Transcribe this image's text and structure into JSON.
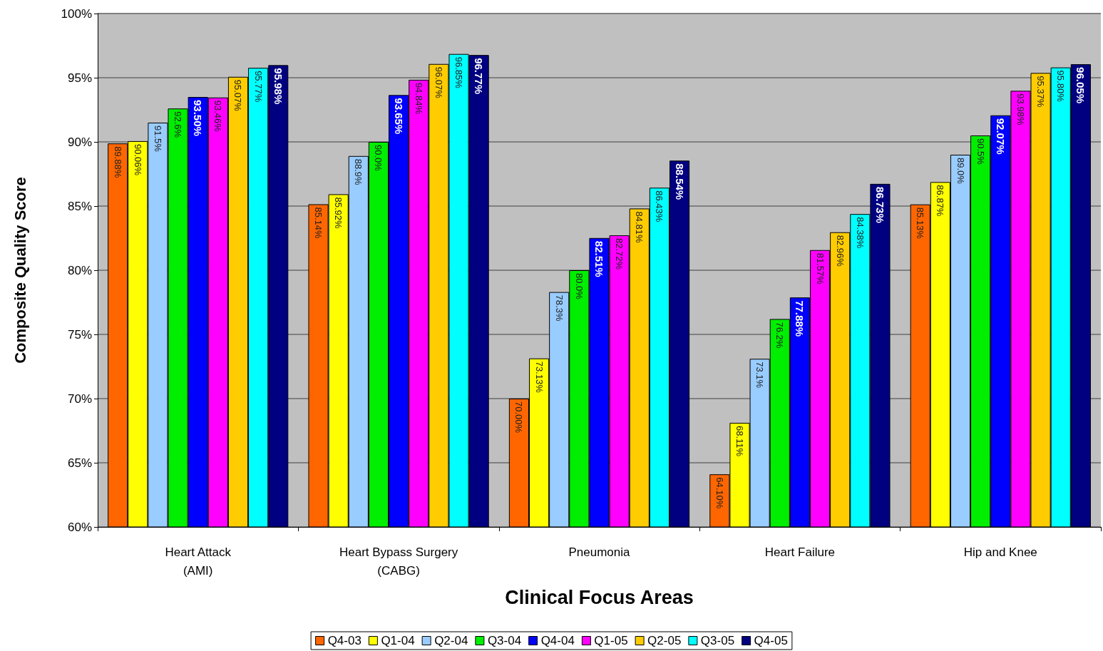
{
  "chart_data": {
    "type": "bar",
    "xlabel": "Clinical Focus Areas",
    "ylabel": "Composite Quality Score",
    "categories": [
      "Heart Attack\n(AMI)",
      "Heart Bypass Surgery\n(CABG)",
      "Pneumonia",
      "Heart Failure",
      "Hip and Knee"
    ],
    "ylim": [
      60,
      100
    ],
    "yticks": [
      {
        "value": 60,
        "label": "60%"
      },
      {
        "value": 65,
        "label": "65%"
      },
      {
        "value": 70,
        "label": "70%"
      },
      {
        "value": 75,
        "label": "75%"
      },
      {
        "value": 80,
        "label": "80%"
      },
      {
        "value": 85,
        "label": "85%"
      },
      {
        "value": 90,
        "label": "90%"
      },
      {
        "value": 95,
        "label": "95%"
      },
      {
        "value": 100,
        "label": "100%"
      }
    ],
    "grid": "y",
    "legend": "bottom",
    "series": [
      {
        "name": "Q4-03",
        "color": "#ff6600",
        "values": [
          89.88,
          85.14,
          70.0,
          64.1,
          85.13
        ],
        "value_labels": [
          "89.88%",
          "85.14%",
          "70.00%",
          "64.10%",
          "85.13%"
        ]
      },
      {
        "name": "Q1-04",
        "color": "#ffff00",
        "values": [
          90.06,
          85.92,
          73.13,
          68.11,
          86.87
        ],
        "value_labels": [
          "90.06%",
          "85.92%",
          "73.13%",
          "68.11%",
          "86.87%"
        ]
      },
      {
        "name": "Q2-04",
        "color": "#99ccff",
        "values": [
          91.5,
          88.9,
          78.3,
          73.1,
          89.0
        ],
        "value_labels": [
          "91.5%",
          "88.9%",
          "78.3%",
          "73.1%",
          "89.0%"
        ]
      },
      {
        "name": "Q3-04",
        "color": "#00ee00",
        "values": [
          92.6,
          90.0,
          80.0,
          76.2,
          90.5
        ],
        "value_labels": [
          "92.6%",
          "90.0%",
          "80.0%",
          "76.2%",
          "90.5%"
        ]
      },
      {
        "name": "Q4-04",
        "color": "#0000ff",
        "values": [
          93.5,
          93.65,
          82.51,
          77.88,
          92.07
        ],
        "value_labels": [
          "93.50%",
          "93.65%",
          "82.51%",
          "77.88%",
          "92.07%"
        ]
      },
      {
        "name": "Q1-05",
        "color": "#ff00ff",
        "values": [
          93.46,
          94.84,
          82.72,
          81.57,
          93.98
        ],
        "value_labels": [
          "93.46%",
          "94.84%",
          "82.72%",
          "81.57%",
          "93.98%"
        ]
      },
      {
        "name": "Q2-05",
        "color": "#ffcc00",
        "values": [
          95.07,
          96.07,
          84.81,
          82.96,
          95.37
        ],
        "value_labels": [
          "95.07%",
          "96.07%",
          "84.81%",
          "82.96%",
          "95.37%"
        ]
      },
      {
        "name": "Q3-05",
        "color": "#00ffff",
        "values": [
          95.77,
          96.85,
          86.43,
          84.38,
          95.8
        ],
        "value_labels": [
          "95.77%",
          "96.85%",
          "86.43%",
          "84.38%",
          "95.80%"
        ]
      },
      {
        "name": "Q4-05",
        "color": "#000080",
        "values": [
          95.98,
          96.77,
          88.54,
          86.73,
          96.05
        ],
        "value_labels": [
          "95.98%",
          "96.77%",
          "88.54%",
          "86.73%",
          "96.05%"
        ]
      }
    ]
  }
}
